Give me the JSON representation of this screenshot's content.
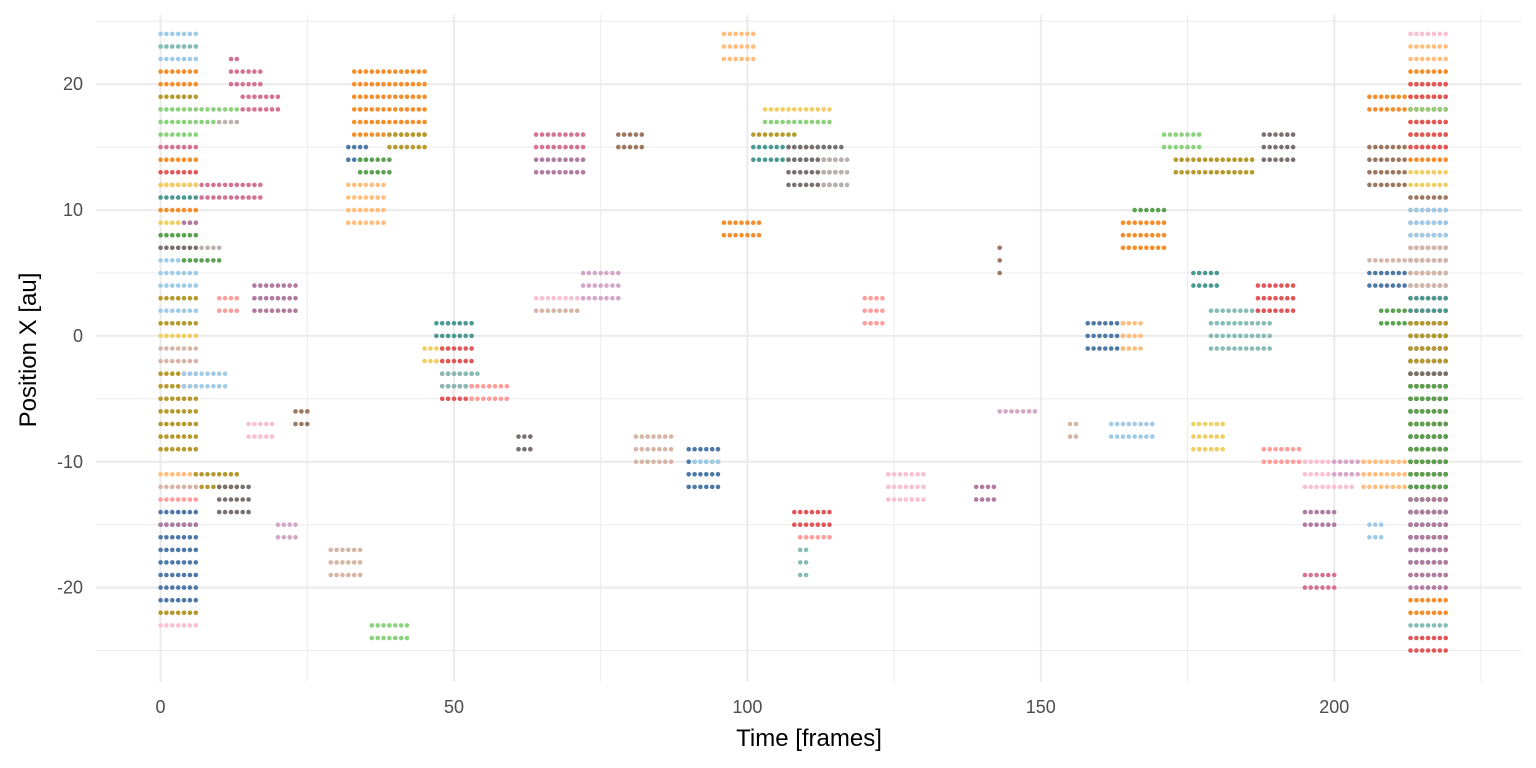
{
  "chart_data": {
    "type": "scatter",
    "title": "",
    "xlabel": "Time [frames]",
    "ylabel": "Position X [au]",
    "xlim": [
      -11,
      232
    ],
    "ylim": [
      -27.5,
      25.5
    ],
    "x_ticks": [
      0,
      50,
      100,
      150,
      200
    ],
    "x_tick_labels": [
      "0",
      "50",
      "100",
      "150",
      "200"
    ],
    "y_ticks": [
      -20,
      -10,
      0,
      10,
      20
    ],
    "y_tick_labels": [
      "-20",
      "-10",
      "0",
      "10",
      "20"
    ],
    "grid": true,
    "legend": "none",
    "palette": [
      "#4e79a7",
      "#a0cbe8",
      "#f28e2b",
      "#ffbe7d",
      "#59a14f",
      "#8cd17d",
      "#b6992d",
      "#f1ce63",
      "#499894",
      "#86bcb6",
      "#e15759",
      "#ff9d9a",
      "#79706e",
      "#bab0ac",
      "#d37295",
      "#fabfd2",
      "#b07aa1",
      "#d4a6c8",
      "#9d7660",
      "#d7b5a6"
    ],
    "groups": [
      {
        "c": 1,
        "x": [
          0,
          6
        ],
        "y": [
          24,
          22
        ]
      },
      {
        "c": 9,
        "x": [
          0,
          6
        ],
        "y": [
          23,
          23
        ]
      },
      {
        "c": 2,
        "x": [
          0,
          6
        ],
        "y": [
          21,
          20
        ]
      },
      {
        "c": 6,
        "x": [
          0,
          6
        ],
        "y": [
          19,
          19
        ]
      },
      {
        "c": 5,
        "x": [
          0,
          13
        ],
        "y": [
          18,
          18
        ]
      },
      {
        "c": 5,
        "x": [
          0,
          9
        ],
        "y": [
          17,
          17
        ]
      },
      {
        "c": 13,
        "x": [
          10,
          13
        ],
        "y": [
          17,
          17
        ]
      },
      {
        "c": 5,
        "x": [
          0,
          6
        ],
        "y": [
          16,
          16
        ]
      },
      {
        "c": 14,
        "x": [
          0,
          6
        ],
        "y": [
          15,
          15
        ]
      },
      {
        "c": 2,
        "x": [
          0,
          6
        ],
        "y": [
          14,
          14
        ]
      },
      {
        "c": 10,
        "x": [
          0,
          6
        ],
        "y": [
          13,
          13
        ]
      },
      {
        "c": 2,
        "x": [
          0,
          6
        ],
        "y": [
          12,
          12
        ]
      },
      {
        "c": 7,
        "x": [
          0,
          6
        ],
        "y": [
          12,
          12
        ]
      },
      {
        "c": 8,
        "x": [
          0,
          6
        ],
        "y": [
          11,
          11
        ]
      },
      {
        "c": 14,
        "x": [
          7,
          17
        ],
        "y": [
          12,
          11
        ]
      },
      {
        "c": 2,
        "x": [
          0,
          6
        ],
        "y": [
          10,
          10
        ]
      },
      {
        "c": 7,
        "x": [
          0,
          6
        ],
        "y": [
          9,
          9
        ]
      },
      {
        "c": 16,
        "x": [
          4,
          6
        ],
        "y": [
          9,
          9
        ]
      },
      {
        "c": 4,
        "x": [
          0,
          6
        ],
        "y": [
          8,
          8
        ]
      },
      {
        "c": 12,
        "x": [
          0,
          6
        ],
        "y": [
          7,
          7
        ]
      },
      {
        "c": 13,
        "x": [
          7,
          10
        ],
        "y": [
          7,
          7
        ]
      },
      {
        "c": 1,
        "x": [
          0,
          6
        ],
        "y": [
          6,
          6
        ]
      },
      {
        "c": 4,
        "x": [
          4,
          10
        ],
        "y": [
          6,
          6
        ]
      },
      {
        "c": 1,
        "x": [
          0,
          6
        ],
        "y": [
          5,
          4
        ]
      },
      {
        "c": 6,
        "x": [
          0,
          6
        ],
        "y": [
          3,
          3
        ]
      },
      {
        "c": 1,
        "x": [
          0,
          6
        ],
        "y": [
          2,
          2
        ]
      },
      {
        "c": 6,
        "x": [
          0,
          6
        ],
        "y": [
          1,
          1
        ]
      },
      {
        "c": 7,
        "x": [
          0,
          6
        ],
        "y": [
          0,
          0
        ]
      },
      {
        "c": 19,
        "x": [
          0,
          6
        ],
        "y": [
          -1,
          -2
        ]
      },
      {
        "c": 6,
        "x": [
          0,
          6
        ],
        "y": [
          -3,
          -9
        ]
      },
      {
        "c": 1,
        "x": [
          4,
          11
        ],
        "y": [
          -3,
          -4
        ]
      },
      {
        "c": 3,
        "x": [
          0,
          6
        ],
        "y": [
          -11,
          -11
        ]
      },
      {
        "c": 6,
        "x": [
          6,
          13
        ],
        "y": [
          -11,
          -12
        ]
      },
      {
        "c": 19,
        "x": [
          0,
          6
        ],
        "y": [
          -12,
          -12
        ]
      },
      {
        "c": 12,
        "x": [
          10,
          15
        ],
        "y": [
          -12,
          -14
        ]
      },
      {
        "c": 11,
        "x": [
          0,
          6
        ],
        "y": [
          -13,
          -13
        ]
      },
      {
        "c": 0,
        "x": [
          0,
          6
        ],
        "y": [
          -14,
          -21
        ]
      },
      {
        "c": 16,
        "x": [
          0,
          6
        ],
        "y": [
          -15,
          -15
        ]
      },
      {
        "c": 6,
        "x": [
          0,
          6
        ],
        "y": [
          -22,
          -22
        ]
      },
      {
        "c": 15,
        "x": [
          0,
          6
        ],
        "y": [
          -23,
          -23
        ]
      },
      {
        "c": 14,
        "x": [
          12,
          13
        ],
        "y": [
          22,
          22
        ]
      },
      {
        "c": 14,
        "x": [
          12,
          17
        ],
        "y": [
          21,
          20
        ]
      },
      {
        "c": 14,
        "x": [
          14,
          20
        ],
        "y": [
          19,
          18
        ]
      },
      {
        "c": 11,
        "x": [
          10,
          13
        ],
        "y": [
          3,
          2
        ]
      },
      {
        "c": 16,
        "x": [
          16,
          23
        ],
        "y": [
          4,
          2
        ]
      },
      {
        "c": 15,
        "x": [
          15,
          19
        ],
        "y": [
          -7,
          -8
        ]
      },
      {
        "c": 18,
        "x": [
          23,
          25
        ],
        "y": [
          -6,
          -7
        ]
      },
      {
        "c": 17,
        "x": [
          20,
          23
        ],
        "y": [
          -15,
          -16
        ]
      },
      {
        "c": 19,
        "x": [
          29,
          34
        ],
        "y": [
          -17,
          -19
        ]
      },
      {
        "c": 2,
        "x": [
          33,
          45
        ],
        "y": [
          21,
          16
        ]
      },
      {
        "c": 6,
        "x": [
          39,
          45
        ],
        "y": [
          16,
          15
        ]
      },
      {
        "c": 0,
        "x": [
          32,
          35
        ],
        "y": [
          15,
          14
        ]
      },
      {
        "c": 4,
        "x": [
          34,
          39
        ],
        "y": [
          14,
          13
        ]
      },
      {
        "c": 3,
        "x": [
          32,
          38
        ],
        "y": [
          12,
          9
        ]
      },
      {
        "c": 5,
        "x": [
          36,
          42
        ],
        "y": [
          -23,
          -24
        ]
      },
      {
        "c": 8,
        "x": [
          47,
          53
        ],
        "y": [
          1,
          0
        ]
      },
      {
        "c": 7,
        "x": [
          45,
          49
        ],
        "y": [
          -1,
          -2
        ]
      },
      {
        "c": 10,
        "x": [
          48,
          53
        ],
        "y": [
          -1,
          -5
        ]
      },
      {
        "c": 9,
        "x": [
          48,
          54
        ],
        "y": [
          -3,
          -4
        ]
      },
      {
        "c": 11,
        "x": [
          53,
          59
        ],
        "y": [
          -4,
          -5
        ]
      },
      {
        "c": 12,
        "x": [
          61,
          63
        ],
        "y": [
          -8,
          -9
        ]
      },
      {
        "c": 19,
        "x": [
          64,
          71
        ],
        "y": [
          2,
          2
        ]
      },
      {
        "c": 15,
        "x": [
          64,
          72
        ],
        "y": [
          3,
          3
        ]
      },
      {
        "c": 17,
        "x": [
          72,
          78
        ],
        "y": [
          5,
          3
        ]
      },
      {
        "c": 14,
        "x": [
          64,
          72
        ],
        "y": [
          16,
          15
        ]
      },
      {
        "c": 16,
        "x": [
          64,
          72
        ],
        "y": [
          14,
          13
        ]
      },
      {
        "c": 18,
        "x": [
          78,
          82
        ],
        "y": [
          16,
          15
        ]
      },
      {
        "c": 19,
        "x": [
          81,
          87
        ],
        "y": [
          -8,
          -10
        ]
      },
      {
        "c": 0,
        "x": [
          90,
          95
        ],
        "y": [
          -9,
          -12
        ]
      },
      {
        "c": 1,
        "x": [
          91,
          95
        ],
        "y": [
          -10,
          -10
        ]
      },
      {
        "c": 3,
        "x": [
          96,
          101
        ],
        "y": [
          24,
          22
        ]
      },
      {
        "c": 2,
        "x": [
          96,
          102
        ],
        "y": [
          9,
          8
        ]
      },
      {
        "c": 7,
        "x": [
          103,
          114
        ],
        "y": [
          18,
          18
        ]
      },
      {
        "c": 5,
        "x": [
          103,
          114
        ],
        "y": [
          17,
          17
        ]
      },
      {
        "c": 6,
        "x": [
          101,
          108
        ],
        "y": [
          16,
          16
        ]
      },
      {
        "c": 8,
        "x": [
          101,
          113
        ],
        "y": [
          15,
          14
        ]
      },
      {
        "c": 12,
        "x": [
          107,
          116
        ],
        "y": [
          15,
          12
        ]
      },
      {
        "c": 13,
        "x": [
          113,
          117
        ],
        "y": [
          14,
          12
        ]
      },
      {
        "c": 10,
        "x": [
          108,
          114
        ],
        "y": [
          -14,
          -15
        ]
      },
      {
        "c": 11,
        "x": [
          109,
          114
        ],
        "y": [
          -16,
          -16
        ]
      },
      {
        "c": 9,
        "x": [
          109,
          110
        ],
        "y": [
          -17,
          -19
        ]
      },
      {
        "c": 11,
        "x": [
          120,
          123
        ],
        "y": [
          3,
          1
        ]
      },
      {
        "c": 15,
        "x": [
          124,
          130
        ],
        "y": [
          -11,
          -13
        ]
      },
      {
        "c": 16,
        "x": [
          139,
          142
        ],
        "y": [
          -12,
          -13
        ]
      },
      {
        "c": 18,
        "x": [
          143,
          143
        ],
        "y": [
          7,
          5
        ]
      },
      {
        "c": 17,
        "x": [
          143,
          149
        ],
        "y": [
          -6,
          -6
        ]
      },
      {
        "c": 19,
        "x": [
          155,
          156
        ],
        "y": [
          -7,
          -8
        ]
      },
      {
        "c": 0,
        "x": [
          158,
          164
        ],
        "y": [
          1,
          -1
        ]
      },
      {
        "c": 3,
        "x": [
          164,
          167
        ],
        "y": [
          1,
          -1
        ]
      },
      {
        "c": 1,
        "x": [
          162,
          169
        ],
        "y": [
          -7,
          -8
        ]
      },
      {
        "c": 2,
        "x": [
          164,
          171
        ],
        "y": [
          9,
          7
        ]
      },
      {
        "c": 4,
        "x": [
          166,
          171
        ],
        "y": [
          10,
          10
        ]
      },
      {
        "c": 5,
        "x": [
          171,
          177
        ],
        "y": [
          16,
          15
        ]
      },
      {
        "c": 6,
        "x": [
          173,
          186
        ],
        "y": [
          14,
          13
        ]
      },
      {
        "c": 7,
        "x": [
          176,
          181
        ],
        "y": [
          -7,
          -9
        ]
      },
      {
        "c": 8,
        "x": [
          176,
          180
        ],
        "y": [
          5,
          4
        ]
      },
      {
        "c": 9,
        "x": [
          179,
          189
        ],
        "y": [
          2,
          -1
        ]
      },
      {
        "c": 10,
        "x": [
          187,
          193
        ],
        "y": [
          4,
          2
        ]
      },
      {
        "c": 12,
        "x": [
          188,
          193
        ],
        "y": [
          16,
          14
        ]
      },
      {
        "c": 11,
        "x": [
          188,
          194
        ],
        "y": [
          -9,
          -10
        ]
      },
      {
        "c": 15,
        "x": [
          195,
          203
        ],
        "y": [
          -10,
          -12
        ]
      },
      {
        "c": 17,
        "x": [
          200,
          205
        ],
        "y": [
          -10,
          -11
        ]
      },
      {
        "c": 16,
        "x": [
          195,
          200
        ],
        "y": [
          -14,
          -15
        ]
      },
      {
        "c": 14,
        "x": [
          195,
          200
        ],
        "y": [
          -19,
          -20
        ]
      },
      {
        "c": 1,
        "x": [
          206,
          208
        ],
        "y": [
          -15,
          -16
        ]
      },
      {
        "c": 3,
        "x": [
          205,
          212
        ],
        "y": [
          -10,
          -12
        ]
      },
      {
        "c": 2,
        "x": [
          206,
          219
        ],
        "y": [
          19,
          18
        ]
      },
      {
        "c": 18,
        "x": [
          206,
          212
        ],
        "y": [
          15,
          12
        ]
      },
      {
        "c": 19,
        "x": [
          206,
          212
        ],
        "y": [
          6,
          6
        ]
      },
      {
        "c": 0,
        "x": [
          206,
          212
        ],
        "y": [
          5,
          4
        ]
      },
      {
        "c": 4,
        "x": [
          208,
          212
        ],
        "y": [
          2,
          1
        ]
      },
      {
        "c": 15,
        "x": [
          213,
          219
        ],
        "y": [
          24,
          24
        ]
      },
      {
        "c": 3,
        "x": [
          213,
          219
        ],
        "y": [
          23,
          22
        ]
      },
      {
        "c": 2,
        "x": [
          213,
          219
        ],
        "y": [
          21,
          14
        ]
      },
      {
        "c": 10,
        "x": [
          213,
          219
        ],
        "y": [
          20,
          15
        ]
      },
      {
        "c": 5,
        "x": [
          213,
          219
        ],
        "y": [
          18,
          18
        ]
      },
      {
        "c": 7,
        "x": [
          213,
          219
        ],
        "y": [
          13,
          12
        ]
      },
      {
        "c": 18,
        "x": [
          213,
          219
        ],
        "y": [
          11,
          -19
        ]
      },
      {
        "c": 1,
        "x": [
          213,
          219
        ],
        "y": [
          10,
          4
        ]
      },
      {
        "c": 19,
        "x": [
          213,
          219
        ],
        "y": [
          7,
          2
        ]
      },
      {
        "c": 11,
        "x": [
          213,
          219
        ],
        "y": [
          3,
          -17
        ]
      },
      {
        "c": 8,
        "x": [
          213,
          219
        ],
        "y": [
          3,
          -18
        ]
      },
      {
        "c": 6,
        "x": [
          213,
          219
        ],
        "y": [
          1,
          -11
        ]
      },
      {
        "c": 12,
        "x": [
          213,
          219
        ],
        "y": [
          -3,
          -16
        ]
      },
      {
        "c": 4,
        "x": [
          213,
          219
        ],
        "y": [
          -4,
          -14
        ]
      },
      {
        "c": 16,
        "x": [
          213,
          219
        ],
        "y": [
          -20,
          -13
        ]
      },
      {
        "c": 2,
        "x": [
          213,
          219
        ],
        "y": [
          -21,
          -22
        ]
      },
      {
        "c": 9,
        "x": [
          213,
          219
        ],
        "y": [
          -23,
          -23
        ]
      },
      {
        "c": 10,
        "x": [
          213,
          219
        ],
        "y": [
          -24,
          -25
        ]
      }
    ]
  }
}
